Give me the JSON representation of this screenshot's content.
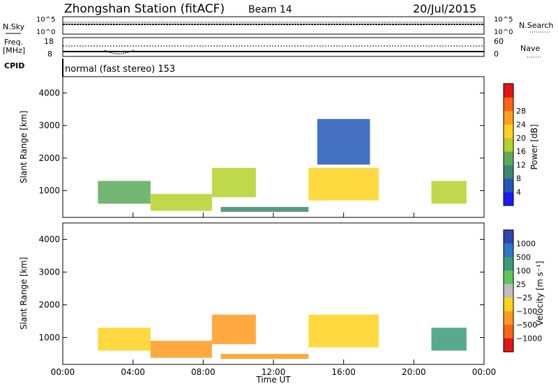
{
  "header": {
    "title": "Zhongshan Station (fitACF)",
    "beam": "Beam 14",
    "date": "20/Jul/2015"
  },
  "noise_panel": {
    "left_label": "N.Sky",
    "left_ticks": [
      "10^5",
      "10^0"
    ],
    "right_ticks": [
      "10^5",
      "10^0"
    ],
    "right_label": "N.Search"
  },
  "freq_panel": {
    "left_label_line1": "Freq.",
    "left_label_line2": "[MHz]",
    "left_ticks": [
      "18",
      "8"
    ],
    "right_ticks": [
      "60",
      "0"
    ],
    "right_label": "Nave"
  },
  "cpid": {
    "label": "CPID",
    "text": "normal (fast stereo) 153"
  },
  "x_axis": {
    "label": "Time UT",
    "ticks": [
      "00:00",
      "04:00",
      "08:00",
      "12:00",
      "16:00",
      "20:00",
      "00:00"
    ]
  },
  "power_panel": {
    "ylabel": "Slant Range [km]",
    "yticks": [
      "1000",
      "2000",
      "3000",
      "4000"
    ],
    "cbar_label": "Power [dB]",
    "cbar_ticks": [
      "4",
      "8",
      "12",
      "16",
      "20",
      "24",
      "28"
    ],
    "cbar_colors": [
      "#1a1aff",
      "#2458b8",
      "#3a8a6a",
      "#5aaa5a",
      "#b4d22a",
      "#ffd21e",
      "#ffa01e",
      "#ff6414",
      "#e61414"
    ]
  },
  "velocity_panel": {
    "ylabel": "Slant Range [km]",
    "yticks": [
      "1000",
      "2000",
      "3000",
      "4000"
    ],
    "cbar_label": "Velocity [m s⁻¹]",
    "cbar_ticks": [
      "1000",
      "500",
      "100",
      "25",
      "−25",
      "−100",
      "−500",
      "−1000"
    ],
    "cbar_colors": [
      "#2c46b4",
      "#2f78c8",
      "#3c9a7a",
      "#5cc85a",
      "#bebebe",
      "#ffd21e",
      "#ff9a1e",
      "#ff6414",
      "#e61414"
    ]
  },
  "chart_data": {
    "type": "heatmap",
    "x_range_hours": [
      0,
      24
    ],
    "y_range_km": [
      180,
      4500
    ],
    "power_regions": [
      {
        "start": "02:00",
        "end": "05:00",
        "range_km": [
          600,
          1300
        ],
        "power_db": 14
      },
      {
        "start": "05:00",
        "end": "08:30",
        "range_km": [
          380,
          900
        ],
        "power_db": 16
      },
      {
        "start": "08:30",
        "end": "11:00",
        "range_km": [
          800,
          1700
        ],
        "power_db": 18
      },
      {
        "start": "09:00",
        "end": "14:00",
        "range_km": [
          350,
          500
        ],
        "power_db": 8
      },
      {
        "start": "14:00",
        "end": "18:00",
        "range_km": [
          700,
          1700
        ],
        "power_db": 20
      },
      {
        "start": "14:30",
        "end": "17:30",
        "range_km": [
          1800,
          3200
        ],
        "power_db": 6
      },
      {
        "start": "21:00",
        "end": "23:00",
        "range_km": [
          600,
          1300
        ],
        "power_db": 16
      }
    ],
    "velocity_regions": [
      {
        "start": "02:00",
        "end": "05:00",
        "range_km": [
          600,
          1300
        ],
        "velocity_ms": -100
      },
      {
        "start": "05:00",
        "end": "08:30",
        "range_km": [
          380,
          900
        ],
        "velocity_ms": -300
      },
      {
        "start": "08:30",
        "end": "11:00",
        "range_km": [
          800,
          1700
        ],
        "velocity_ms": -300
      },
      {
        "start": "09:00",
        "end": "14:00",
        "range_km": [
          350,
          500
        ],
        "velocity_ms": -300
      },
      {
        "start": "14:00",
        "end": "18:00",
        "range_km": [
          700,
          1700
        ],
        "velocity_ms": -100
      },
      {
        "start": "21:00",
        "end": "23:00",
        "range_km": [
          600,
          1300
        ],
        "velocity_ms": 100
      }
    ]
  }
}
